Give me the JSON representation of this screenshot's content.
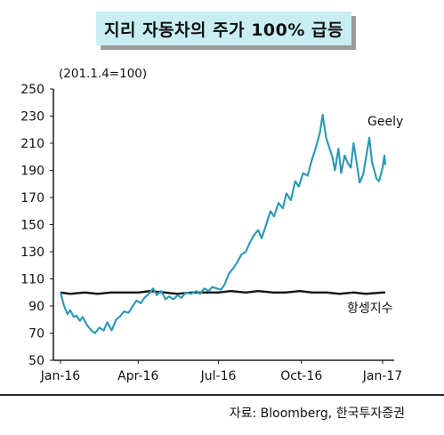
{
  "header": {
    "title": "지리 자동차의 주가 100% 급등"
  },
  "unit_label": "(201.1.4=100)",
  "source": "자료: Bloomberg, 한국투자증권",
  "colors": {
    "title_bg": "#c8eef4",
    "geely": "#2a97b6",
    "hangseng": "#111111"
  },
  "chart_data": {
    "type": "line",
    "title": "지리 자동차의 주가 100% 급등",
    "xlabel": "",
    "ylabel": "",
    "ylim": [
      50,
      250
    ],
    "yticks": [
      50,
      70,
      90,
      110,
      130,
      150,
      170,
      190,
      210,
      230,
      250
    ],
    "xticks": [
      {
        "label": "Jan-16",
        "date": "2016-01-04"
      },
      {
        "label": "Apr-16",
        "date": "2016-04-01"
      },
      {
        "label": "Jul-16",
        "date": "2016-07-01"
      },
      {
        "label": "Oct-16",
        "date": "2016-10-03"
      },
      {
        "label": "Jan-17",
        "date": "2017-01-03"
      }
    ],
    "grid": false,
    "series": [
      {
        "name": "Geely",
        "color": "#2a97b6",
        "points": [
          [
            "2016-01-04",
            100
          ],
          [
            "2016-01-08",
            90
          ],
          [
            "2016-01-12",
            84
          ],
          [
            "2016-01-15",
            87
          ],
          [
            "2016-01-19",
            82
          ],
          [
            "2016-01-22",
            83
          ],
          [
            "2016-01-26",
            79
          ],
          [
            "2016-01-29",
            82
          ],
          [
            "2016-02-03",
            76
          ],
          [
            "2016-02-08",
            72
          ],
          [
            "2016-02-12",
            70
          ],
          [
            "2016-02-17",
            74
          ],
          [
            "2016-02-22",
            72
          ],
          [
            "2016-02-26",
            78
          ],
          [
            "2016-03-02",
            72
          ],
          [
            "2016-03-07",
            80
          ],
          [
            "2016-03-11",
            82
          ],
          [
            "2016-03-16",
            86
          ],
          [
            "2016-03-21",
            85
          ],
          [
            "2016-03-25",
            89
          ],
          [
            "2016-03-30",
            94
          ],
          [
            "2016-04-04",
            92
          ],
          [
            "2016-04-08",
            96
          ],
          [
            "2016-04-13",
            99
          ],
          [
            "2016-04-18",
            103
          ],
          [
            "2016-04-22",
            98
          ],
          [
            "2016-04-27",
            101
          ],
          [
            "2016-05-02",
            95
          ],
          [
            "2016-05-06",
            97
          ],
          [
            "2016-05-11",
            95
          ],
          [
            "2016-05-16",
            98
          ],
          [
            "2016-05-20",
            96
          ],
          [
            "2016-05-25",
            100
          ],
          [
            "2016-05-31",
            99
          ],
          [
            "2016-06-06",
            101
          ],
          [
            "2016-06-10",
            99
          ],
          [
            "2016-06-15",
            103
          ],
          [
            "2016-06-20",
            101
          ],
          [
            "2016-06-24",
            104
          ],
          [
            "2016-06-29",
            103
          ],
          [
            "2016-07-04",
            102
          ],
          [
            "2016-07-08",
            106
          ],
          [
            "2016-07-13",
            114
          ],
          [
            "2016-07-18",
            118
          ],
          [
            "2016-07-22",
            122
          ],
          [
            "2016-07-27",
            128
          ],
          [
            "2016-08-01",
            130
          ],
          [
            "2016-08-05",
            136
          ],
          [
            "2016-08-10",
            142
          ],
          [
            "2016-08-15",
            146
          ],
          [
            "2016-08-19",
            140
          ],
          [
            "2016-08-24",
            150
          ],
          [
            "2016-08-29",
            160
          ],
          [
            "2016-09-02",
            156
          ],
          [
            "2016-09-07",
            166
          ],
          [
            "2016-09-12",
            162
          ],
          [
            "2016-09-16",
            173
          ],
          [
            "2016-09-21",
            168
          ],
          [
            "2016-09-26",
            182
          ],
          [
            "2016-09-30",
            178
          ],
          [
            "2016-10-05",
            188
          ],
          [
            "2016-10-10",
            186
          ],
          [
            "2016-10-14",
            196
          ],
          [
            "2016-10-19",
            206
          ],
          [
            "2016-10-24",
            218
          ],
          [
            "2016-10-27",
            231
          ],
          [
            "2016-10-31",
            214
          ],
          [
            "2016-11-03",
            208
          ],
          [
            "2016-11-07",
            200
          ],
          [
            "2016-11-10",
            190
          ],
          [
            "2016-11-14",
            206
          ],
          [
            "2016-11-17",
            188
          ],
          [
            "2016-11-21",
            201
          ],
          [
            "2016-11-24",
            196
          ],
          [
            "2016-11-28",
            192
          ],
          [
            "2016-12-01",
            210
          ],
          [
            "2016-12-05",
            194
          ],
          [
            "2016-12-08",
            181
          ],
          [
            "2016-12-12",
            187
          ],
          [
            "2016-12-15",
            199
          ],
          [
            "2016-12-19",
            214
          ],
          [
            "2016-12-22",
            196
          ],
          [
            "2016-12-27",
            184
          ],
          [
            "2016-12-30",
            182
          ],
          [
            "2017-01-03",
            192
          ],
          [
            "2017-01-05",
            201
          ],
          [
            "2017-01-06",
            194
          ]
        ]
      },
      {
        "name": "항셍지수",
        "color": "#111111",
        "points": [
          [
            "2016-01-04",
            100
          ],
          [
            "2016-01-15",
            99
          ],
          [
            "2016-02-01",
            100
          ],
          [
            "2016-02-15",
            99
          ],
          [
            "2016-03-01",
            100
          ],
          [
            "2016-03-15",
            100
          ],
          [
            "2016-04-01",
            100
          ],
          [
            "2016-04-15",
            101
          ],
          [
            "2016-05-01",
            100
          ],
          [
            "2016-05-15",
            99
          ],
          [
            "2016-06-01",
            100
          ],
          [
            "2016-06-15",
            100
          ],
          [
            "2016-07-01",
            100
          ],
          [
            "2016-07-15",
            101
          ],
          [
            "2016-08-01",
            100
          ],
          [
            "2016-08-15",
            101
          ],
          [
            "2016-09-01",
            100
          ],
          [
            "2016-09-15",
            100
          ],
          [
            "2016-10-01",
            101
          ],
          [
            "2016-10-15",
            100
          ],
          [
            "2016-11-01",
            100
          ],
          [
            "2016-11-15",
            99
          ],
          [
            "2016-12-01",
            100
          ],
          [
            "2016-12-15",
            99
          ],
          [
            "2017-01-03",
            100
          ],
          [
            "2017-01-06",
            100
          ]
        ]
      }
    ]
  }
}
